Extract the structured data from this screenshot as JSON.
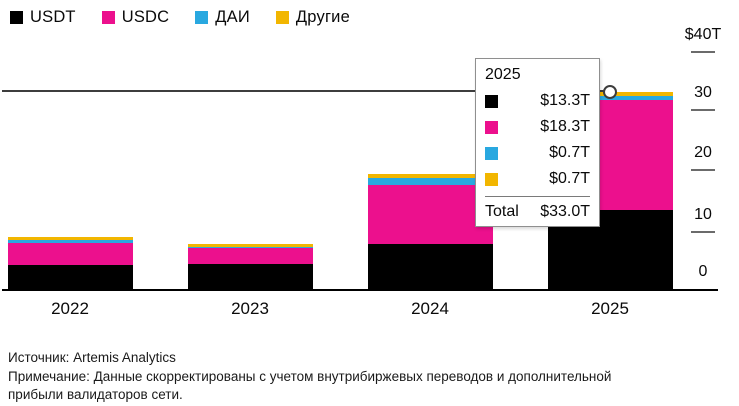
{
  "legend": {
    "items": [
      {
        "label": "USDT",
        "color": "#000000"
      },
      {
        "label": "USDC",
        "color": "#ec108d"
      },
      {
        "label": "ДАИ",
        "color": "#29a8e0"
      },
      {
        "label": "Другие",
        "color": "#f2b600"
      }
    ]
  },
  "chart_data": {
    "type": "bar",
    "stacked": true,
    "title": "",
    "categories": [
      "2022",
      "2023",
      "2024",
      "2025"
    ],
    "series": [
      {
        "name": "USDT",
        "color": "#000000",
        "values": [
          4.1,
          4.4,
          7.7,
          13.3
        ]
      },
      {
        "name": "USDC",
        "color": "#ec108d",
        "values": [
          3.8,
          2.6,
          9.8,
          18.3
        ]
      },
      {
        "name": "ДАИ",
        "color": "#29a8e0",
        "values": [
          0.4,
          0.2,
          1.2,
          0.7
        ]
      },
      {
        "name": "Другие",
        "color": "#f2b600",
        "values": [
          0.5,
          0.4,
          0.6,
          0.7
        ]
      }
    ],
    "unit": "T (USD trillions)",
    "ylim": [
      0,
      40
    ],
    "grid": false,
    "legend_position": "top-left",
    "y_axis": {
      "side": "right",
      "ticks": [
        {
          "label": "$40T",
          "value": 40
        },
        {
          "label": "30",
          "value": 30
        },
        {
          "label": "20",
          "value": 20
        },
        {
          "label": "10",
          "value": 10
        },
        {
          "label": "0",
          "value": 0
        }
      ]
    },
    "hover": {
      "category": "2025",
      "total": 33.0
    }
  },
  "tooltip": {
    "title": "2025",
    "rows": [
      {
        "series": "USDT",
        "color": "#000000",
        "value": "$13.3T"
      },
      {
        "series": "USDC",
        "color": "#ec108d",
        "value": "$18.3T"
      },
      {
        "series": "ДАИ",
        "color": "#29a8e0",
        "value": "$0.7T"
      },
      {
        "series": "Другие",
        "color": "#f2b600",
        "value": "$0.7T"
      }
    ],
    "total_label": "Total",
    "total_value": "$33.0T"
  },
  "footer": {
    "source": "Источник: Artemis Analytics",
    "note": "Примечание: Данные скорректированы с учетом внутрибиржевых переводов и дополнительной прибыли валидаторов сети."
  }
}
